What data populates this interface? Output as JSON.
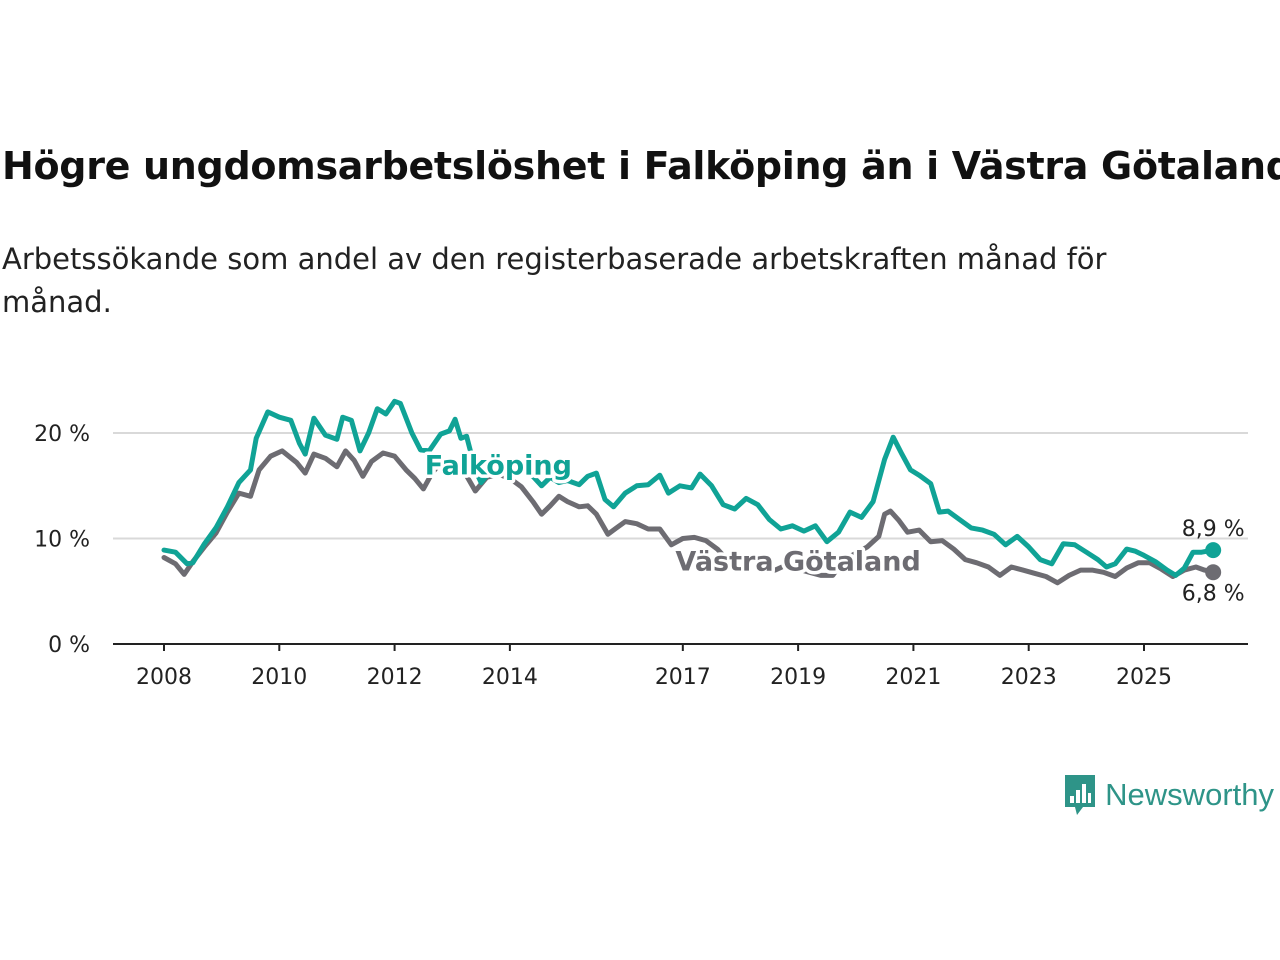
{
  "header": {
    "title": "Högre ungdomsarbetslöshet i Falköping än i Västra Götaland",
    "subtitle": "Arbetssökande som andel av den registerbaserade arbetskraften månad för månad."
  },
  "brand": {
    "name": "Newsworthy",
    "icon": "newsworthy-logo-icon",
    "color": "#2e9488"
  },
  "chart_data": {
    "type": "line",
    "title": "Högre ungdomsarbetslöshet i Falköping än i Västra Götaland",
    "xlabel": "",
    "ylabel": "",
    "xlim": [
      2008,
      2026.5
    ],
    "ylim": [
      0,
      24
    ],
    "yticks": [
      {
        "value": 0,
        "label": "0 %"
      },
      {
        "value": 10,
        "label": "10 %"
      },
      {
        "value": 20,
        "label": "20 %"
      }
    ],
    "xticks": [
      {
        "value": 2008,
        "label": "2008"
      },
      {
        "value": 2010,
        "label": "2010"
      },
      {
        "value": 2012,
        "label": "2012"
      },
      {
        "value": 2014,
        "label": "2014"
      },
      {
        "value": 2017,
        "label": "2017"
      },
      {
        "value": 2019,
        "label": "2019"
      },
      {
        "value": 2021,
        "label": "2021"
      },
      {
        "value": 2023,
        "label": "2023"
      },
      {
        "value": 2025,
        "label": "2025"
      }
    ],
    "grid": true,
    "series": [
      {
        "name": "Falköping",
        "color": "#10a396",
        "last_label": "8,9 %",
        "points": [
          [
            2008.0,
            8.9
          ],
          [
            2008.2,
            8.7
          ],
          [
            2008.4,
            7.6
          ],
          [
            2008.5,
            7.7
          ],
          [
            2008.7,
            9.5
          ],
          [
            2008.9,
            11.0
          ],
          [
            2009.1,
            13.0
          ],
          [
            2009.3,
            15.3
          ],
          [
            2009.5,
            16.5
          ],
          [
            2009.6,
            19.5
          ],
          [
            2009.8,
            22.0
          ],
          [
            2010.0,
            21.5
          ],
          [
            2010.2,
            21.2
          ],
          [
            2010.35,
            19.0
          ],
          [
            2010.45,
            18.0
          ],
          [
            2010.6,
            21.4
          ],
          [
            2010.8,
            19.8
          ],
          [
            2011.0,
            19.4
          ],
          [
            2011.1,
            21.5
          ],
          [
            2011.25,
            21.2
          ],
          [
            2011.4,
            18.3
          ],
          [
            2011.55,
            20.0
          ],
          [
            2011.7,
            22.3
          ],
          [
            2011.85,
            21.8
          ],
          [
            2012.0,
            23.0
          ],
          [
            2012.1,
            22.8
          ],
          [
            2012.3,
            20.0
          ],
          [
            2012.45,
            18.4
          ],
          [
            2012.6,
            18.3
          ],
          [
            2012.8,
            19.9
          ],
          [
            2012.95,
            20.2
          ],
          [
            2013.05,
            21.3
          ],
          [
            2013.15,
            19.5
          ],
          [
            2013.25,
            19.7
          ],
          [
            2013.4,
            16.5
          ],
          [
            2013.5,
            15.3
          ],
          [
            2013.6,
            16.0
          ],
          [
            2013.8,
            16.4
          ],
          [
            2014.0,
            16.6
          ],
          [
            2014.2,
            16.4
          ],
          [
            2014.4,
            15.9
          ],
          [
            2014.55,
            15.0
          ],
          [
            2014.7,
            15.8
          ],
          [
            2014.85,
            15.3
          ],
          [
            2015.0,
            15.5
          ],
          [
            2015.2,
            15.1
          ],
          [
            2015.35,
            15.9
          ],
          [
            2015.5,
            16.2
          ],
          [
            2015.65,
            13.7
          ],
          [
            2015.8,
            13.0
          ],
          [
            2016.0,
            14.3
          ],
          [
            2016.2,
            15.0
          ],
          [
            2016.4,
            15.1
          ],
          [
            2016.6,
            16.0
          ],
          [
            2016.75,
            14.3
          ],
          [
            2016.95,
            15.0
          ],
          [
            2017.15,
            14.8
          ],
          [
            2017.3,
            16.1
          ],
          [
            2017.5,
            15.0
          ],
          [
            2017.7,
            13.2
          ],
          [
            2017.9,
            12.8
          ],
          [
            2018.1,
            13.8
          ],
          [
            2018.3,
            13.2
          ],
          [
            2018.5,
            11.8
          ],
          [
            2018.7,
            10.9
          ],
          [
            2018.9,
            11.2
          ],
          [
            2019.1,
            10.7
          ],
          [
            2019.3,
            11.2
          ],
          [
            2019.5,
            9.7
          ],
          [
            2019.7,
            10.6
          ],
          [
            2019.9,
            12.5
          ],
          [
            2020.1,
            12.0
          ],
          [
            2020.3,
            13.5
          ],
          [
            2020.5,
            17.5
          ],
          [
            2020.65,
            19.6
          ],
          [
            2020.8,
            18.0
          ],
          [
            2020.95,
            16.5
          ],
          [
            2021.1,
            16.0
          ],
          [
            2021.3,
            15.2
          ],
          [
            2021.45,
            12.5
          ],
          [
            2021.6,
            12.6
          ],
          [
            2021.8,
            11.8
          ],
          [
            2022.0,
            11.0
          ],
          [
            2022.2,
            10.8
          ],
          [
            2022.4,
            10.4
          ],
          [
            2022.6,
            9.4
          ],
          [
            2022.8,
            10.2
          ],
          [
            2023.0,
            9.2
          ],
          [
            2023.2,
            8.0
          ],
          [
            2023.4,
            7.6
          ],
          [
            2023.6,
            9.5
          ],
          [
            2023.8,
            9.4
          ],
          [
            2024.0,
            8.7
          ],
          [
            2024.2,
            8.0
          ],
          [
            2024.35,
            7.3
          ],
          [
            2024.5,
            7.6
          ],
          [
            2024.7,
            9.0
          ],
          [
            2024.85,
            8.8
          ],
          [
            2025.0,
            8.4
          ],
          [
            2025.2,
            7.8
          ],
          [
            2025.4,
            7.0
          ],
          [
            2025.55,
            6.5
          ],
          [
            2025.7,
            7.2
          ],
          [
            2025.85,
            8.7
          ],
          [
            2026.0,
            8.7
          ],
          [
            2026.2,
            8.9
          ]
        ]
      },
      {
        "name": "Västra Götaland",
        "color": "#6d6c72",
        "last_label": "6,8 %",
        "points": [
          [
            2008.0,
            8.2
          ],
          [
            2008.2,
            7.6
          ],
          [
            2008.35,
            6.6
          ],
          [
            2008.5,
            7.8
          ],
          [
            2008.7,
            9.2
          ],
          [
            2008.9,
            10.5
          ],
          [
            2009.1,
            12.5
          ],
          [
            2009.3,
            14.3
          ],
          [
            2009.5,
            14.0
          ],
          [
            2009.65,
            16.5
          ],
          [
            2009.85,
            17.8
          ],
          [
            2010.05,
            18.3
          ],
          [
            2010.3,
            17.2
          ],
          [
            2010.45,
            16.2
          ],
          [
            2010.6,
            18.0
          ],
          [
            2010.8,
            17.6
          ],
          [
            2011.0,
            16.8
          ],
          [
            2011.15,
            18.3
          ],
          [
            2011.3,
            17.4
          ],
          [
            2011.45,
            15.9
          ],
          [
            2011.6,
            17.3
          ],
          [
            2011.8,
            18.1
          ],
          [
            2012.0,
            17.8
          ],
          [
            2012.2,
            16.5
          ],
          [
            2012.35,
            15.7
          ],
          [
            2012.5,
            14.7
          ],
          [
            2012.65,
            16.2
          ],
          [
            2012.8,
            17.2
          ],
          [
            2013.0,
            17.4
          ],
          [
            2013.2,
            16.4
          ],
          [
            2013.4,
            14.5
          ],
          [
            2013.6,
            15.8
          ],
          [
            2013.8,
            16.1
          ],
          [
            2014.0,
            15.7
          ],
          [
            2014.2,
            14.9
          ],
          [
            2014.4,
            13.5
          ],
          [
            2014.55,
            12.3
          ],
          [
            2014.7,
            13.1
          ],
          [
            2014.85,
            14.0
          ],
          [
            2015.0,
            13.5
          ],
          [
            2015.2,
            13.0
          ],
          [
            2015.35,
            13.1
          ],
          [
            2015.5,
            12.3
          ],
          [
            2015.7,
            10.4
          ],
          [
            2015.85,
            11.0
          ],
          [
            2016.0,
            11.6
          ],
          [
            2016.2,
            11.4
          ],
          [
            2016.4,
            10.9
          ],
          [
            2016.6,
            10.9
          ],
          [
            2016.8,
            9.4
          ],
          [
            2017.0,
            10.0
          ],
          [
            2017.2,
            10.1
          ],
          [
            2017.4,
            9.8
          ],
          [
            2017.6,
            9.0
          ],
          [
            2017.8,
            7.8
          ],
          [
            2018.0,
            8.4
          ],
          [
            2018.2,
            8.0
          ],
          [
            2018.4,
            7.5
          ],
          [
            2018.6,
            7.0
          ],
          [
            2018.8,
            7.5
          ],
          [
            2019.0,
            7.1
          ],
          [
            2019.2,
            6.8
          ],
          [
            2019.4,
            6.5
          ],
          [
            2019.6,
            6.5
          ],
          [
            2019.8,
            8.0
          ],
          [
            2020.0,
            8.6
          ],
          [
            2020.2,
            9.2
          ],
          [
            2020.4,
            10.2
          ],
          [
            2020.5,
            12.3
          ],
          [
            2020.6,
            12.6
          ],
          [
            2020.75,
            11.7
          ],
          [
            2020.9,
            10.6
          ],
          [
            2021.1,
            10.8
          ],
          [
            2021.3,
            9.7
          ],
          [
            2021.5,
            9.8
          ],
          [
            2021.7,
            9.0
          ],
          [
            2021.9,
            8.0
          ],
          [
            2022.1,
            7.7
          ],
          [
            2022.3,
            7.3
          ],
          [
            2022.5,
            6.5
          ],
          [
            2022.7,
            7.3
          ],
          [
            2022.9,
            7.0
          ],
          [
            2023.1,
            6.7
          ],
          [
            2023.3,
            6.4
          ],
          [
            2023.5,
            5.8
          ],
          [
            2023.7,
            6.5
          ],
          [
            2023.9,
            7.0
          ],
          [
            2024.1,
            7.0
          ],
          [
            2024.3,
            6.8
          ],
          [
            2024.5,
            6.4
          ],
          [
            2024.7,
            7.2
          ],
          [
            2024.9,
            7.7
          ],
          [
            2025.1,
            7.7
          ],
          [
            2025.3,
            7.1
          ],
          [
            2025.5,
            6.4
          ],
          [
            2025.7,
            7.0
          ],
          [
            2025.9,
            7.3
          ],
          [
            2026.05,
            7.0
          ],
          [
            2026.2,
            6.8
          ]
        ]
      }
    ],
    "annotations": [
      {
        "series": "Falköping",
        "text": "Falköping",
        "x": 2013.8,
        "y": 17.0
      },
      {
        "series": "Västra Götaland",
        "text": "Västra Götaland",
        "x": 2019.0,
        "y": 7.9
      }
    ]
  }
}
